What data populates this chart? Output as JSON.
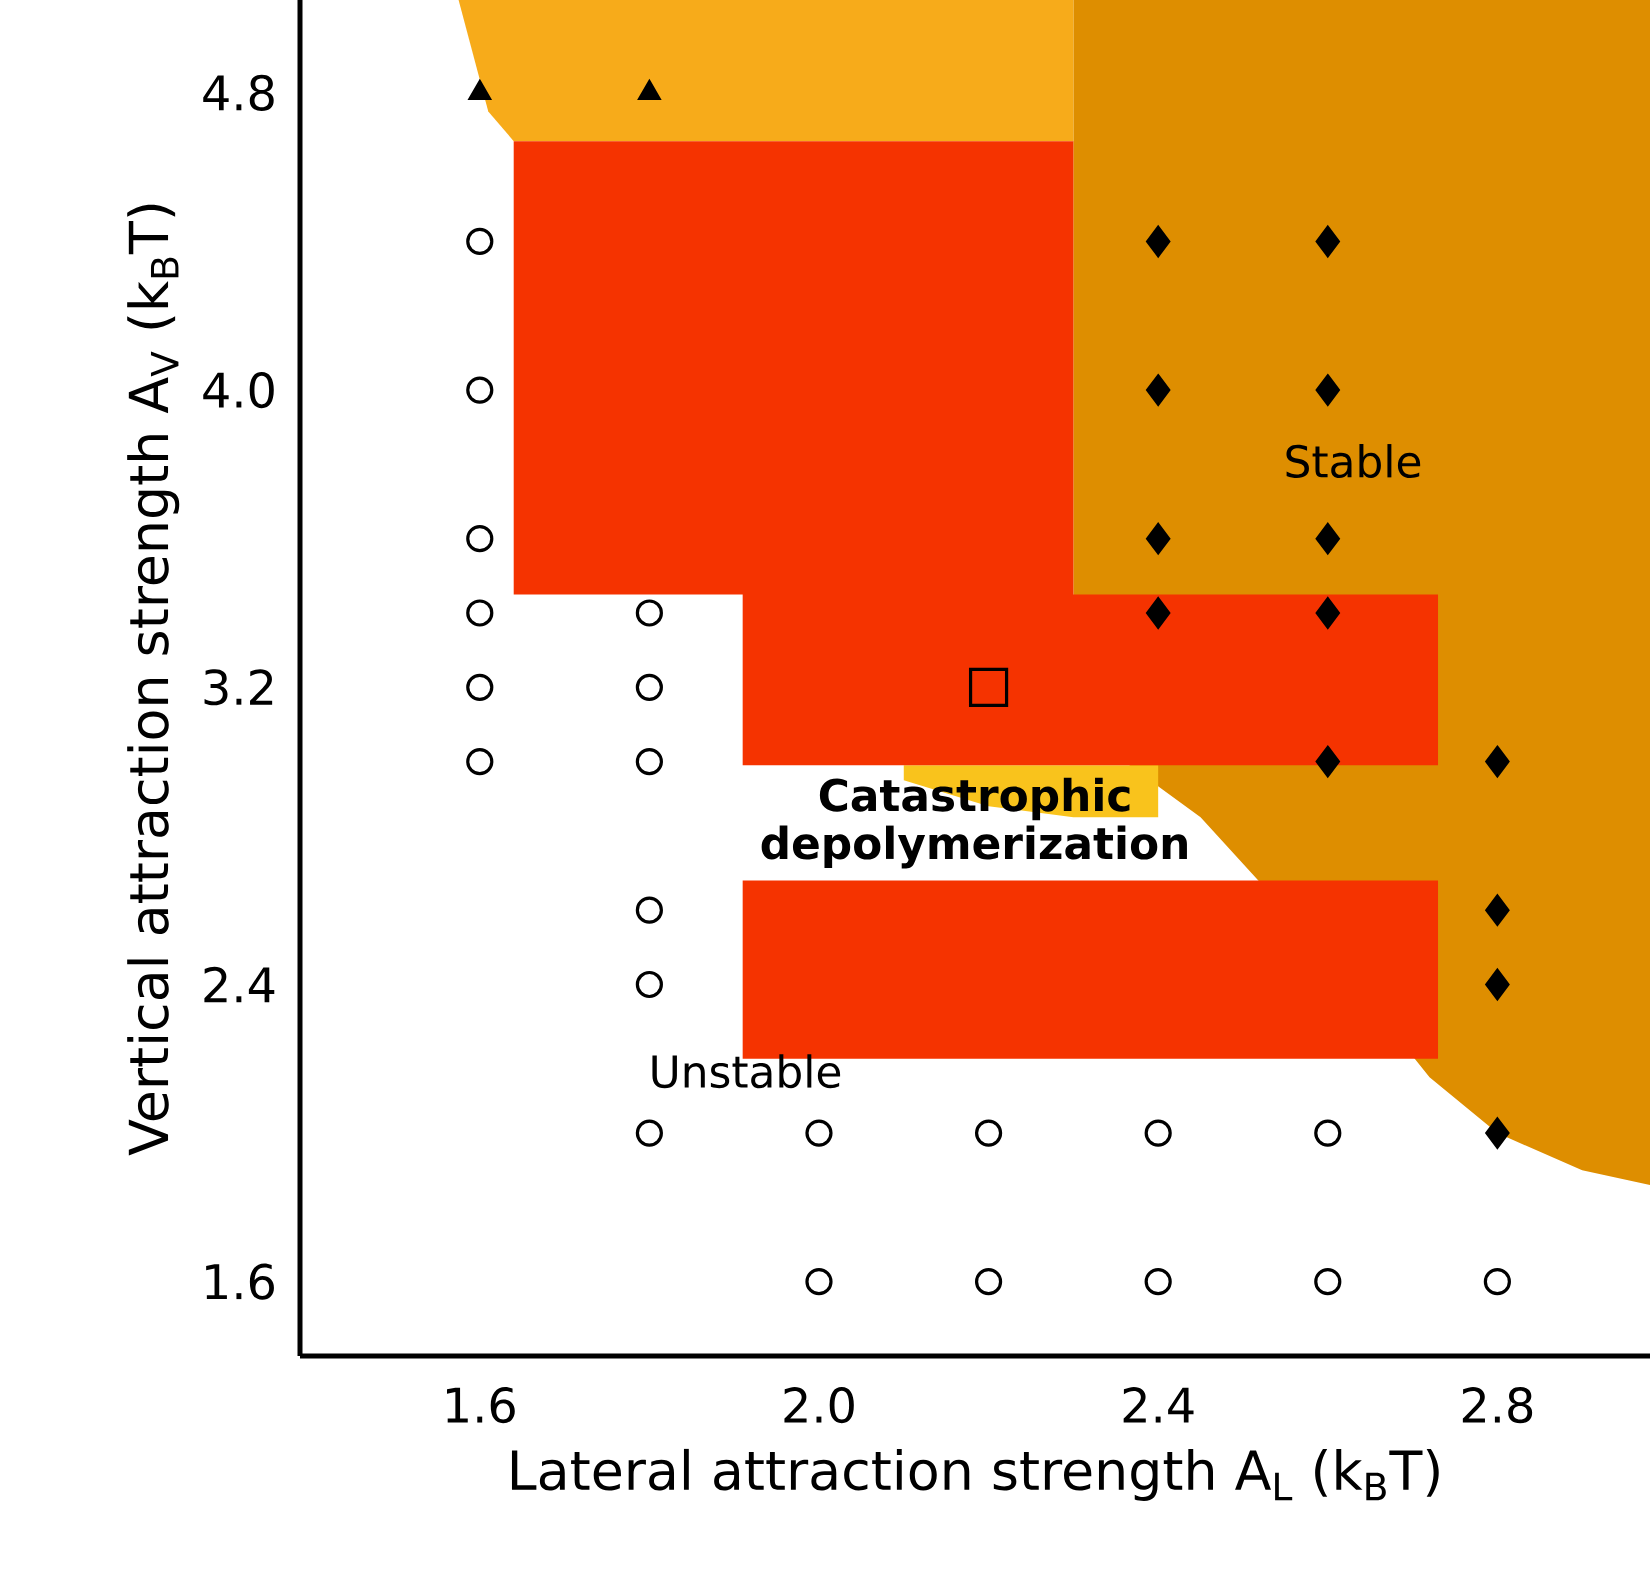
{
  "chart_data": {
    "type": "scatter",
    "xlabel": "Lateral attraction strength A$_{L}$ (k$_{B}$T)",
    "ylabel": "Vertical attraction strength A$_{V}$ (k$_{B}$T)",
    "xlim": [
      1.388,
      2.98
    ],
    "ylim": [
      1.4,
      5.05
    ],
    "xticks": [
      1.6,
      {
        "value": 2.0,
        "label": "2.0"
      },
      2.4,
      2.8
    ],
    "yticks": [
      1.6,
      2.4,
      3.2,
      {
        "value": 4.0,
        "label": "4.0"
      },
      4.8
    ],
    "grid": false,
    "series": [
      {
        "marker": "circle",
        "color": "#000000",
        "x": [
          1.6,
          1.6,
          1.6,
          1.6,
          1.6,
          1.6,
          1.8,
          1.8,
          1.8,
          1.8,
          1.8,
          1.8,
          2.0,
          2.0,
          2.2,
          2.2,
          2.4,
          2.4,
          2.6,
          2.6,
          2.8
        ],
        "values": [
          4.4,
          4.0,
          3.6,
          3.4,
          3.2,
          3.0,
          3.4,
          3.2,
          3.0,
          2.6,
          2.4,
          2.0,
          2.0,
          1.6,
          2.0,
          1.6,
          2.0,
          1.6,
          2.0,
          1.6,
          1.6
        ]
      },
      {
        "marker": "diamond",
        "color": "#000000",
        "x": [
          2.4,
          2.4,
          2.4,
          2.4,
          2.6,
          2.6,
          2.6,
          2.6,
          2.6,
          2.8,
          2.8,
          2.8,
          2.8
        ],
        "values": [
          4.4,
          4.0,
          3.6,
          3.4,
          4.4,
          4.0,
          3.6,
          3.4,
          3.0,
          3.0,
          2.6,
          2.4,
          2.0
        ]
      },
      {
        "marker": "triangle",
        "color": "#000000",
        "x": [
          1.6,
          1.8
        ],
        "values": [
          4.8,
          4.8
        ]
      },
      {
        "marker": "square",
        "color": "#000000",
        "x": [
          2.2
        ],
        "values": [
          3.2
        ]
      }
    ],
    "annotations": [
      "Stable",
      "**Catastrophic depolymerization**",
      "Unstable"
    ]
  }
}
